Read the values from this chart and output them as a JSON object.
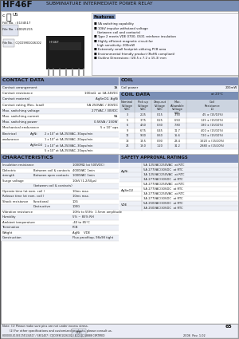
{
  "title": "HF46F",
  "subtitle": "SUBMINIATURE INTERMEDIATE POWER RELAY",
  "header_bg": "#7a8fb5",
  "section_bg": "#8090b8",
  "light_row": "#edf0f7",
  "white_row": "#ffffff",
  "page_bg": "#c8d0e0",
  "coil_header_bg": "#7a8fb5",
  "features_title_bg": "#7a8fb5",
  "features": [
    "5A switching capability",
    "10kV impulse withstand voltage",
    "(between coil and contacts)",
    "Type 2 meets VDE 0700, 0631 reinforce insulation",
    "Highly efficient magnetic circuit for",
    "high sensitivity: 200mW",
    "Extremely small footprint utilizing PCB area",
    "Environmental friendly product (RoHS compliant)",
    "Outline Dimensions: (20.5 x 7.2 x 15.3) mm"
  ],
  "contact_rows": [
    [
      "Contact arrangement",
      "1A"
    ],
    [
      "Contact resistance",
      "100mΩ  at 1A 24VDC"
    ],
    [
      "Contact material",
      "AgSnO2, AgNi"
    ],
    [
      "Contact rating (Res. load)",
      "5A 250VAC / 30VDC"
    ],
    [
      "Max. switching voltage",
      "277VAC / 30VDC"
    ],
    [
      "Max. switching current",
      "5A"
    ],
    [
      "Max. switching power",
      "0.5KVA / 150W"
    ],
    [
      "Mechanical endurance",
      "5 x 10⁷ ops"
    ]
  ],
  "elec_endurance": [
    [
      "Electrical",
      "AgNi",
      "2 x 10⁵ at 5A 250VAC, 30ops/min"
    ],
    [
      "endurance",
      "",
      "1 x 10⁵ at 5A 250VAC, 20ops/min"
    ],
    [
      "",
      "AgSnO2",
      "1 x 10⁵ at 5A 250VAC, 30ops/min"
    ],
    [
      "",
      "",
      "5 x 10⁴ at 5A 250VAC, 20ops/min"
    ]
  ],
  "coil_power": "200mW",
  "coil_data_headers": [
    "Nominal\nVoltage\nVDC",
    "Pick up\nVoltage\nVDC",
    "Drop-out\nVoltage\nVDC",
    "Max.\nAllowable\nVoltage\nVDC",
    "Coil\nResistance\nΩ"
  ],
  "coil_data_rows": [
    [
      "3",
      "2.25",
      "0.15",
      "3.90",
      "45 ± (15/10%)"
    ],
    [
      "5",
      "3.75",
      "0.25",
      "6.50",
      "125 ± (15/10%)"
    ],
    [
      "6",
      "4.50",
      "0.30",
      "7.80",
      "180 ± (15/10%)"
    ],
    [
      "9",
      "6.75",
      "0.45",
      "11.7",
      "400 ± (15/10%)"
    ],
    [
      "12",
      "9.00",
      "0.60",
      "15.6",
      "720 ± (15/10%)"
    ],
    [
      "18",
      "13.5",
      "0.90",
      "23.4",
      "1620 ± (15/10%)"
    ],
    [
      "24",
      "18.0",
      "1.20",
      "31.2",
      "2880 ± (15/10%)"
    ]
  ],
  "char_rows": [
    [
      "Insulation resistance",
      "",
      "1000MΩ (at 500VDC)"
    ],
    [
      "Dielectric",
      "Between coil & contacts",
      "4000VAC 1min"
    ],
    [
      "strength",
      "Between open contacts",
      "1000VAC 1min"
    ],
    [
      "Surge voltage",
      "",
      "10kV (1.2/50μs)"
    ],
    [
      "",
      "(between coil & contacts)",
      ""
    ],
    [
      "Operate time (at nom. coil )",
      "",
      "10ms max."
    ],
    [
      "Release time (at nom. coil )",
      "",
      "10ms max."
    ],
    [
      "Shock resistance",
      "Functional",
      "10G"
    ],
    [
      "",
      "Destructive",
      "100G"
    ],
    [
      "Vibration resistance",
      "",
      "10Hz to 55Hz  1.5mm amplitude"
    ],
    [
      "Humidity",
      "",
      "5% ~ 85% RH"
    ],
    [
      "Ambient temperature",
      "",
      "-40 to 85°C"
    ],
    [
      "Termination",
      "",
      "PCB"
    ],
    [
      "Weight",
      "",
      "AgNi    VDE"
    ],
    [
      "Construction",
      "",
      "Flux proof/top, 98x98 tight"
    ]
  ],
  "safety_rows": [
    [
      "AgNi",
      "5A 125VAC/250VAC  at RTC"
    ],
    [
      "",
      "5A 277VAC/30VDC  at RTC"
    ],
    [
      "",
      "3A 125VAC/250VAC  at RTC"
    ],
    [
      "",
      "3A 277VAC/30VDC  at RTC"
    ],
    [
      "AgSnO2",
      "5A 277VAC/250VAC  at RTC"
    ],
    [
      "",
      "5A 277VAC/30VDC  at RTC"
    ],
    [
      "",
      "3A 277VAC/250VAC  at RTC"
    ],
    [
      "",
      "3A 277VAC/30VDC  at RTC"
    ],
    [
      "VDE",
      "5A 250VAC/30VDC  at RTC"
    ],
    [
      "",
      "3A 250VAC/30VDC  at RTC"
    ]
  ],
  "footer_note1": "Note: (1) Please make sure pins are not under excess stress.",
  "footer_note2": "        (2) For other specifications and customized products, please consult us.",
  "footer_cert": "800000-E134517/E134517 / 5801407 / CQC09901026102 / ECO QC 58888 CERTIFIED",
  "footer_year": "2006  Rev. 1.02",
  "footer_page": "65"
}
